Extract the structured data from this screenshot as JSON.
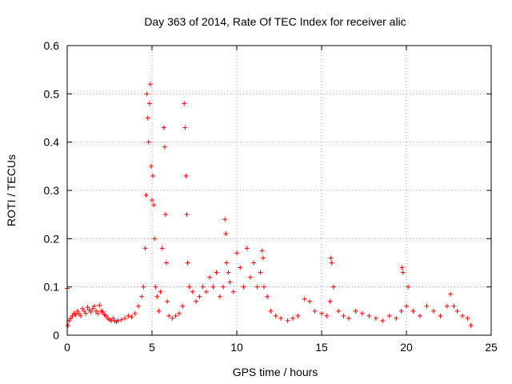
{
  "chart_data": {
    "type": "scatter",
    "title": "Day 363 of 2014, Rate Of TEC Index for receiver alic",
    "xlabel": "GPS time / hours",
    "ylabel": "ROTI / TECUs",
    "xlim": [
      0,
      25
    ],
    "ylim": [
      0,
      0.6
    ],
    "xticks": [
      0,
      5,
      10,
      15,
      20,
      25
    ],
    "yticks": [
      0,
      0.1,
      0.2,
      0.3,
      0.4,
      0.5,
      0.6
    ],
    "xtick_labels": [
      "0",
      "5",
      "10",
      "15",
      "20",
      "25"
    ],
    "ytick_labels": [
      "0",
      "0.1",
      "0.2",
      "0.3",
      "0.4",
      "0.5",
      "0.6"
    ],
    "grid": true,
    "marker": "+",
    "color": "#ff0000",
    "series": [
      {
        "name": "ROTI",
        "x": [
          0.0,
          0.05,
          0.1,
          0.2,
          0.3,
          0.4,
          0.5,
          0.6,
          0.7,
          0.8,
          0.9,
          1.0,
          1.1,
          1.2,
          1.3,
          1.4,
          1.5,
          1.6,
          1.7,
          1.8,
          1.9,
          2.0,
          2.1,
          2.2,
          2.3,
          2.4,
          2.5,
          2.6,
          2.7,
          2.8,
          2.9,
          3.0,
          3.2,
          3.4,
          3.6,
          3.8,
          4.0,
          4.2,
          4.4,
          4.5,
          4.6,
          4.65,
          4.7,
          4.75,
          4.8,
          4.85,
          4.9,
          4.95,
          5.0,
          5.05,
          5.1,
          5.15,
          5.2,
          5.3,
          5.4,
          5.5,
          5.6,
          5.7,
          5.75,
          5.8,
          5.85,
          5.9,
          6.0,
          6.2,
          6.4,
          6.6,
          6.8,
          6.9,
          6.95,
          7.0,
          7.05,
          7.1,
          7.2,
          7.4,
          7.6,
          7.8,
          8.0,
          8.2,
          8.4,
          8.6,
          8.8,
          9.0,
          9.2,
          9.3,
          9.35,
          9.4,
          9.5,
          9.6,
          9.8,
          10.0,
          10.2,
          10.4,
          10.6,
          10.8,
          11.0,
          11.2,
          11.4,
          11.5,
          11.55,
          11.6,
          11.8,
          12.0,
          12.3,
          12.6,
          13.0,
          13.3,
          13.6,
          14.0,
          14.3,
          14.6,
          15.0,
          15.3,
          15.5,
          15.55,
          15.6,
          15.7,
          16.0,
          16.3,
          16.6,
          17.0,
          17.4,
          17.8,
          18.2,
          18.6,
          19.0,
          19.4,
          19.7,
          19.75,
          19.8,
          20.0,
          20.1,
          20.4,
          20.8,
          21.2,
          21.6,
          22.0,
          22.4,
          22.6,
          22.8,
          23.0,
          23.3,
          23.6,
          23.8
        ],
        "y": [
          0.097,
          0.02,
          0.03,
          0.035,
          0.04,
          0.045,
          0.042,
          0.05,
          0.045,
          0.04,
          0.055,
          0.05,
          0.045,
          0.058,
          0.052,
          0.048,
          0.055,
          0.06,
          0.05,
          0.045,
          0.062,
          0.05,
          0.048,
          0.042,
          0.04,
          0.035,
          0.032,
          0.03,
          0.035,
          0.03,
          0.028,
          0.03,
          0.032,
          0.035,
          0.04,
          0.038,
          0.045,
          0.06,
          0.08,
          0.1,
          0.18,
          0.29,
          0.5,
          0.45,
          0.4,
          0.48,
          0.52,
          0.35,
          0.28,
          0.33,
          0.27,
          0.2,
          0.1,
          0.08,
          0.05,
          0.09,
          0.18,
          0.43,
          0.39,
          0.25,
          0.15,
          0.07,
          0.04,
          0.035,
          0.04,
          0.045,
          0.06,
          0.48,
          0.43,
          0.33,
          0.25,
          0.15,
          0.1,
          0.09,
          0.07,
          0.08,
          0.1,
          0.09,
          0.12,
          0.1,
          0.13,
          0.08,
          0.1,
          0.24,
          0.21,
          0.15,
          0.13,
          0.11,
          0.09,
          0.17,
          0.14,
          0.1,
          0.18,
          0.12,
          0.15,
          0.1,
          0.13,
          0.175,
          0.16,
          0.1,
          0.08,
          0.05,
          0.04,
          0.035,
          0.03,
          0.035,
          0.04,
          0.075,
          0.07,
          0.05,
          0.045,
          0.04,
          0.07,
          0.16,
          0.15,
          0.1,
          0.05,
          0.04,
          0.035,
          0.05,
          0.045,
          0.04,
          0.035,
          0.03,
          0.04,
          0.035,
          0.05,
          0.14,
          0.13,
          0.06,
          0.1,
          0.05,
          0.04,
          0.06,
          0.05,
          0.04,
          0.06,
          0.085,
          0.06,
          0.05,
          0.04,
          0.035,
          0.02
        ]
      }
    ]
  }
}
